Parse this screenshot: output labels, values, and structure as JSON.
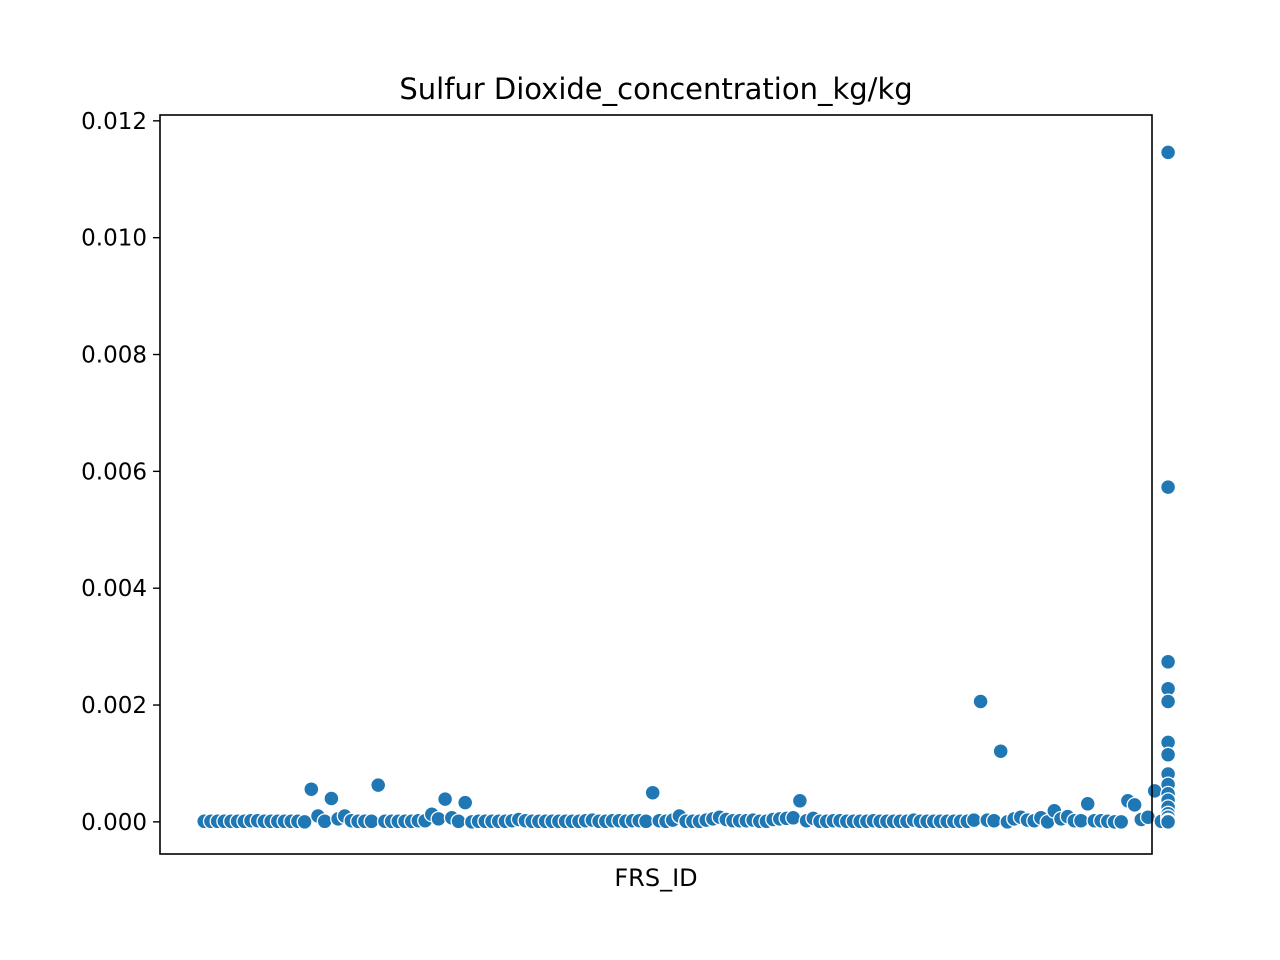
{
  "chart_data": {
    "type": "scatter",
    "title": "Sulfur Dioxide_concentration_kg/kg",
    "xlabel": "FRS_ID",
    "ylabel": "",
    "x_tick_labels_visible": false,
    "ylim": [
      -0.00055,
      0.0121
    ],
    "yticks": [
      0.0,
      0.002,
      0.004,
      0.006,
      0.008,
      0.01,
      0.012
    ],
    "ytick_labels": [
      "0.000",
      "0.002",
      "0.004",
      "0.006",
      "0.008",
      "0.010",
      "0.012"
    ],
    "xlim": [
      -6.6,
      141.6
    ],
    "grid": false,
    "legend": "none",
    "marker_color": "#1f77b4",
    "x_note": "x values are category positions (index of FRS_ID in order of appearance)",
    "points": [
      [
        0,
        1e-05
      ],
      [
        1,
        1e-05
      ],
      [
        2,
        1e-05
      ],
      [
        3,
        1e-05
      ],
      [
        4,
        1e-05
      ],
      [
        5,
        1e-05
      ],
      [
        6,
        1e-05
      ],
      [
        7,
        2e-05
      ],
      [
        8,
        2e-05
      ],
      [
        9,
        1e-05
      ],
      [
        10,
        1e-05
      ],
      [
        11,
        1e-05
      ],
      [
        12,
        1e-05
      ],
      [
        13,
        1e-05
      ],
      [
        14,
        1e-05
      ],
      [
        15,
        0.0
      ],
      [
        16,
        0.00056
      ],
      [
        17,
        0.0001
      ],
      [
        18,
        1e-05
      ],
      [
        19,
        0.0004
      ],
      [
        20,
        5e-05
      ],
      [
        21,
        0.0001
      ],
      [
        22,
        2e-05
      ],
      [
        23,
        1e-05
      ],
      [
        24,
        1e-05
      ],
      [
        25,
        1e-05
      ],
      [
        26,
        0.00063
      ],
      [
        27,
        1e-05
      ],
      [
        28,
        1e-05
      ],
      [
        29,
        1e-05
      ],
      [
        30,
        1e-05
      ],
      [
        31,
        1e-05
      ],
      [
        32,
        2e-05
      ],
      [
        33,
        2e-05
      ],
      [
        34,
        0.00013
      ],
      [
        35,
        5e-05
      ],
      [
        36,
        0.00039
      ],
      [
        37,
        7e-05
      ],
      [
        38,
        1e-05
      ],
      [
        39,
        0.00033
      ],
      [
        40,
        0.0
      ],
      [
        41,
        1e-05
      ],
      [
        42,
        1e-05
      ],
      [
        43,
        1e-05
      ],
      [
        44,
        1e-05
      ],
      [
        45,
        1e-05
      ],
      [
        46,
        2e-05
      ],
      [
        47,
        4e-05
      ],
      [
        48,
        2e-05
      ],
      [
        49,
        1e-05
      ],
      [
        50,
        1e-05
      ],
      [
        51,
        1e-05
      ],
      [
        52,
        1e-05
      ],
      [
        53,
        1e-05
      ],
      [
        54,
        1e-05
      ],
      [
        55,
        1e-05
      ],
      [
        56,
        1e-05
      ],
      [
        57,
        2e-05
      ],
      [
        58,
        3e-05
      ],
      [
        59,
        1e-05
      ],
      [
        60,
        1e-05
      ],
      [
        61,
        2e-05
      ],
      [
        62,
        2e-05
      ],
      [
        63,
        1e-05
      ],
      [
        64,
        2e-05
      ],
      [
        65,
        2e-05
      ],
      [
        66,
        1e-05
      ],
      [
        67,
        0.0005
      ],
      [
        68,
        2e-05
      ],
      [
        69,
        1e-05
      ],
      [
        70,
        3e-05
      ],
      [
        71,
        0.0001
      ],
      [
        72,
        1e-05
      ],
      [
        73,
        1e-05
      ],
      [
        74,
        1e-05
      ],
      [
        75,
        3e-05
      ],
      [
        76,
        5e-05
      ],
      [
        77,
        8e-05
      ],
      [
        78,
        4e-05
      ],
      [
        79,
        2e-05
      ],
      [
        80,
        2e-05
      ],
      [
        81,
        2e-05
      ],
      [
        82,
        3e-05
      ],
      [
        83,
        1e-05
      ],
      [
        84,
        1e-05
      ],
      [
        85,
        4e-05
      ],
      [
        86,
        5e-05
      ],
      [
        87,
        6e-05
      ],
      [
        88,
        7e-05
      ],
      [
        89,
        0.00036
      ],
      [
        90,
        2e-05
      ],
      [
        91,
        6e-05
      ],
      [
        92,
        1e-05
      ],
      [
        93,
        1e-05
      ],
      [
        94,
        2e-05
      ],
      [
        95,
        2e-05
      ],
      [
        96,
        1e-05
      ],
      [
        97,
        1e-05
      ],
      [
        98,
        1e-05
      ],
      [
        99,
        1e-05
      ],
      [
        100,
        2e-05
      ],
      [
        101,
        1e-05
      ],
      [
        102,
        1e-05
      ],
      [
        103,
        1e-05
      ],
      [
        104,
        1e-05
      ],
      [
        105,
        1e-05
      ],
      [
        106,
        3e-05
      ],
      [
        107,
        1e-05
      ],
      [
        108,
        1e-05
      ],
      [
        109,
        1e-05
      ],
      [
        110,
        1e-05
      ],
      [
        111,
        1e-05
      ],
      [
        112,
        1e-05
      ],
      [
        113,
        1e-05
      ],
      [
        114,
        1e-05
      ],
      [
        115,
        3e-05
      ],
      [
        116,
        0.00206
      ],
      [
        117,
        3e-05
      ],
      [
        118,
        2e-05
      ],
      [
        119,
        0.00121
      ],
      [
        120,
        0.0
      ],
      [
        121,
        5e-05
      ],
      [
        122,
        8e-05
      ],
      [
        123,
        3e-05
      ],
      [
        124,
        2e-05
      ],
      [
        125,
        7e-05
      ],
      [
        126,
        0.0
      ],
      [
        127,
        0.00019
      ],
      [
        128,
        5e-05
      ],
      [
        129,
        9e-05
      ],
      [
        130,
        2e-05
      ],
      [
        131,
        2e-05
      ],
      [
        132,
        0.00031
      ],
      [
        133,
        2e-05
      ],
      [
        134,
        2e-05
      ],
      [
        135,
        1e-05
      ],
      [
        136,
        0.0
      ],
      [
        137,
        0.0
      ],
      [
        138,
        0.00036
      ],
      [
        139,
        0.00029
      ],
      [
        140,
        4e-05
      ],
      [
        141,
        8e-05
      ],
      [
        142,
        0.00053
      ],
      [
        143,
        1e-05
      ],
      [
        144,
        0.01146
      ],
      [
        144,
        0.00573
      ],
      [
        144,
        0.00274
      ],
      [
        144,
        0.00228
      ],
      [
        144,
        0.00206
      ],
      [
        144,
        0.00136
      ],
      [
        144,
        0.00115
      ],
      [
        144,
        0.00082
      ],
      [
        144,
        0.00064
      ],
      [
        144,
        0.00048
      ],
      [
        144,
        0.00037
      ],
      [
        144,
        0.00025
      ],
      [
        144,
        0.00014
      ],
      [
        144,
        8e-05
      ],
      [
        144,
        2e-05
      ],
      [
        144,
        0.0
      ]
    ]
  }
}
